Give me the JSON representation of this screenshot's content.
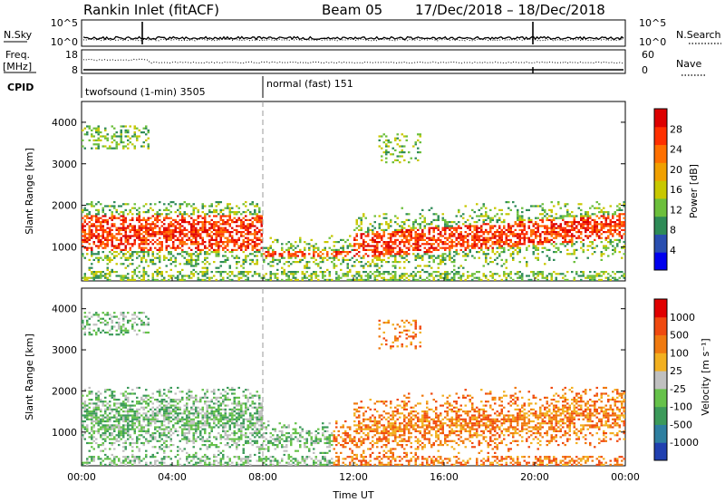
{
  "header": {
    "station": "Rankin Inlet (fitACF)",
    "beam": "Beam 05",
    "date_range": "17/Dec/2018 – 18/Dec/2018"
  },
  "noise_panel": {
    "left_label": "N.Sky",
    "right_label": "N.Search",
    "left_ticks": [
      "10^5",
      "10^0"
    ],
    "right_ticks": [
      "10^5",
      "10^0"
    ]
  },
  "freq_panel": {
    "left_label_1": "Freq.",
    "left_label_2": "[MHz]",
    "right_label": "Nave",
    "left_ticks": [
      "18",
      "8"
    ],
    "right_ticks": [
      "60",
      "0"
    ]
  },
  "cpid_panel": {
    "label": "CPID",
    "segments": [
      {
        "text": "twofsound (1-min) 3505",
        "start_hour": 0
      },
      {
        "text": "normal (fast) 151",
        "start_hour": 8
      }
    ]
  },
  "x_axis": {
    "label": "Time UT",
    "ticks": [
      "00:00",
      "04:00",
      "08:00",
      "12:00",
      "16:00",
      "20:00",
      "00:00"
    ]
  },
  "chart_data": [
    {
      "type": "heatmap",
      "name": "power",
      "ylabel": "Slant Range [km]",
      "yticks": [
        1000,
        2000,
        3000,
        4000
      ],
      "ylim": [
        180,
        4500
      ],
      "xlim_hours": [
        0,
        24
      ],
      "colorbar": {
        "label": "Power [dB]",
        "ticks": [
          "28",
          "24",
          "20",
          "16",
          "12",
          "8",
          "4"
        ],
        "colors": [
          "#0000ee",
          "#2a4fb0",
          "#2e8b57",
          "#6cbf3c",
          "#c8c800",
          "#f0a000",
          "#ff7000",
          "#ff3000",
          "#dd0000"
        ]
      }
    },
    {
      "type": "heatmap",
      "name": "velocity",
      "ylabel": "Slant Range [km]",
      "yticks": [
        1000,
        2000,
        3000,
        4000
      ],
      "ylim": [
        180,
        4500
      ],
      "xlim_hours": [
        0,
        24
      ],
      "colorbar": {
        "label": "Velocity [m s⁻¹]",
        "ticks": [
          "1000",
          "500",
          "100",
          "25",
          "-25",
          "-100",
          "-500",
          "-1000"
        ],
        "colors": [
          "#2040b0",
          "#2e7fa0",
          "#3c9a5a",
          "#66c24a",
          "#c0c0c0",
          "#f2b020",
          "#f07a10",
          "#f04a10",
          "#e00000"
        ]
      }
    }
  ]
}
